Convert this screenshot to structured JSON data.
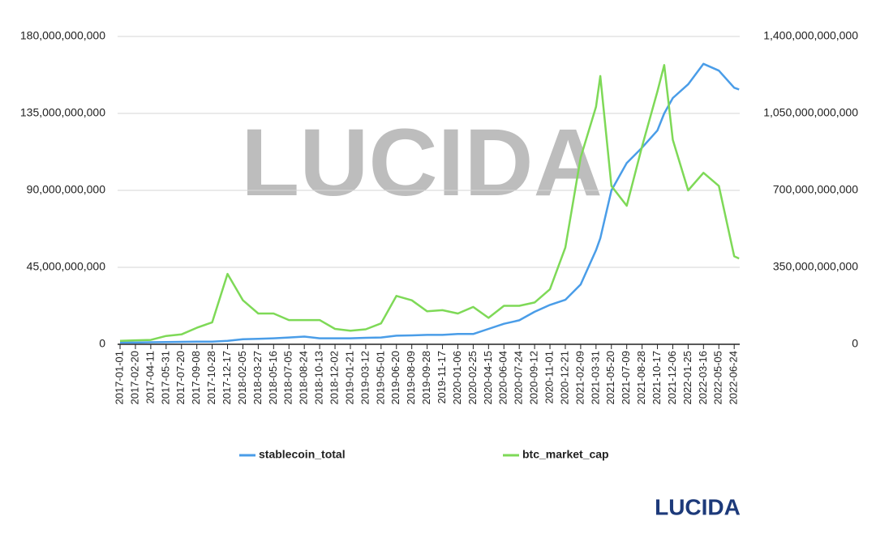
{
  "chart_data": {
    "type": "line",
    "watermark": "LUCIDA",
    "logo": "LUCIDA",
    "x": [
      "2017-01-01",
      "2017-02-20",
      "2017-04-11",
      "2017-05-31",
      "2017-07-20",
      "2017-09-08",
      "2017-10-28",
      "2017-12-17",
      "2018-02-05",
      "2018-03-27",
      "2018-05-16",
      "2018-07-05",
      "2018-08-24",
      "2018-10-13",
      "2018-12-02",
      "2019-01-21",
      "2019-03-12",
      "2019-05-01",
      "2019-06-20",
      "2019-08-09",
      "2019-09-28",
      "2019-11-17",
      "2020-01-06",
      "2020-02-25",
      "2020-04-15",
      "2020-06-04",
      "2020-07-24",
      "2020-09-12",
      "2020-11-01",
      "2020-12-21",
      "2021-02-09",
      "2021-03-31",
      "2021-04-14",
      "2021-05-20",
      "2021-07-09",
      "2021-08-28",
      "2021-10-17",
      "2021-11-08",
      "2021-12-06",
      "2022-01-25",
      "2022-03-16",
      "2022-05-05",
      "2022-06-24",
      "2022-07-10"
    ],
    "series": [
      {
        "name": "stablecoin_total",
        "color": "#4a9de8",
        "axis": "y",
        "values": [
          1000000000,
          1000000000,
          1200000000,
          1300000000,
          1400000000,
          1500000000,
          1500000000,
          2000000000,
          3000000000,
          3200000000,
          3500000000,
          4000000000,
          4500000000,
          3500000000,
          3500000000,
          3500000000,
          3800000000,
          4000000000,
          5000000000,
          5200000000,
          5500000000,
          5500000000,
          6000000000,
          6000000000,
          9000000000,
          12000000000,
          14000000000,
          19000000000,
          23000000000,
          26000000000,
          35000000000,
          55000000000,
          62000000000,
          90000000000,
          106000000000,
          115000000000,
          125000000000,
          135000000000,
          144000000000,
          152000000000,
          164000000000,
          160000000000,
          150000000000,
          149000000000
        ]
      },
      {
        "name": "btc_market_cap",
        "color": "#7ed957",
        "axis": "y2",
        "values": [
          16000000000,
          18000000000,
          20000000000,
          38000000000,
          45000000000,
          75000000000,
          100000000000,
          320000000000,
          200000000000,
          140000000000,
          140000000000,
          110000000000,
          110000000000,
          110000000000,
          70000000000,
          62000000000,
          68000000000,
          95000000000,
          220000000000,
          200000000000,
          150000000000,
          155000000000,
          140000000000,
          170000000000,
          120000000000,
          175000000000,
          175000000000,
          190000000000,
          250000000000,
          440000000000,
          850000000000,
          1080000000000,
          1220000000000,
          720000000000,
          630000000000,
          900000000000,
          1150000000000,
          1270000000000,
          930000000000,
          700000000000,
          780000000000,
          720000000000,
          400000000000,
          390000000000
        ]
      }
    ],
    "xlim": [
      "2016-12-24",
      "2022-07-12"
    ],
    "xticks": [
      "2017-01-01",
      "2017-02-20",
      "2017-04-11",
      "2017-05-31",
      "2017-07-20",
      "2017-09-08",
      "2017-10-28",
      "2017-12-17",
      "2018-02-05",
      "2018-03-27",
      "2018-05-16",
      "2018-07-05",
      "2018-08-24",
      "2018-10-13",
      "2018-12-02",
      "2019-01-21",
      "2019-03-12",
      "2019-05-01",
      "2019-06-20",
      "2019-08-09",
      "2019-09-28",
      "2019-11-17",
      "2020-01-06",
      "2020-02-25",
      "2020-04-15",
      "2020-06-04",
      "2020-07-24",
      "2020-09-12",
      "2020-11-01",
      "2020-12-21",
      "2021-02-09",
      "2021-03-31",
      "2021-05-20",
      "2021-07-09",
      "2021-08-28",
      "2021-10-17",
      "2021-12-06",
      "2022-01-25",
      "2022-03-16",
      "2022-05-05",
      "2022-06-24"
    ],
    "ylim": [
      0,
      180000000000
    ],
    "yticks": [
      0,
      {
        "value": 45000000000,
        "label": "45,000,000,000"
      },
      {
        "value": 90000000000,
        "label": "90,000,000,000"
      },
      {
        "value": 135000000000,
        "label": "135,000,000,000"
      },
      {
        "value": 180000000000,
        "label": "180,000,000,000"
      }
    ],
    "y2lim": [
      0,
      1400000000000
    ],
    "y2ticks": [
      0,
      {
        "value": 350000000000,
        "label": "350,000,000,000"
      },
      {
        "value": 700000000000,
        "label": "700,000,000,000"
      },
      {
        "value": 1050000000000,
        "label": "1,050,000,000,000"
      },
      {
        "value": 1400000000000,
        "label": "1,400,000,000,000"
      }
    ],
    "grid": true,
    "legend": "bottom"
  }
}
